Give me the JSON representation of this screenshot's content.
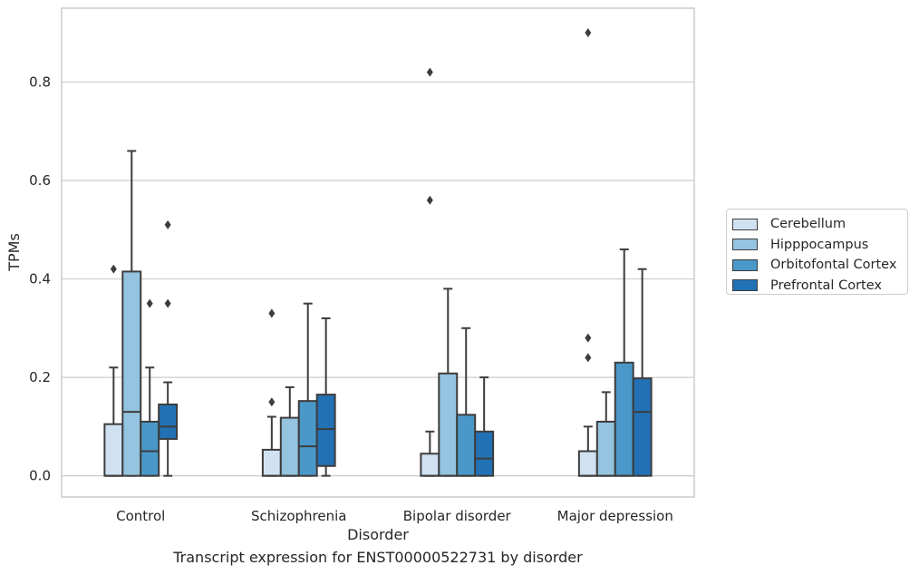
{
  "chart_data": {
    "type": "box",
    "xlabel": "Disorder",
    "ylabel": "TPMs",
    "ylim": [
      -0.043,
      0.95
    ],
    "yticks": [
      "0.0",
      "0.2",
      "0.4",
      "0.6",
      "0.8"
    ],
    "grid": "horizontal",
    "legend_position": "right",
    "categories": [
      "Control",
      "Schizophrenia",
      "Bipolar disorder",
      "Major depression"
    ],
    "series": [
      {
        "name": "Cerebellum",
        "color": "#d0e1f2",
        "boxes": [
          {
            "whisker_low": 0.0,
            "q1": 0.0,
            "median": 0.0,
            "q3": 0.105,
            "whisker_high": 0.22,
            "outliers": [
              0.42
            ]
          },
          {
            "whisker_low": 0.0,
            "q1": 0.0,
            "median": 0.0,
            "q3": 0.053,
            "whisker_high": 0.12,
            "outliers": [
              0.15,
              0.33
            ]
          },
          {
            "whisker_low": 0.0,
            "q1": 0.0,
            "median": 0.0,
            "q3": 0.045,
            "whisker_high": 0.09,
            "outliers": [
              0.56,
              0.82
            ]
          },
          {
            "whisker_low": 0.0,
            "q1": 0.0,
            "median": 0.0,
            "q3": 0.05,
            "whisker_high": 0.1,
            "outliers": [
              0.24,
              0.28,
              0.9
            ]
          }
        ]
      },
      {
        "name": "Hipppocampus",
        "color": "#94c4df",
        "boxes": [
          {
            "whisker_low": 0.0,
            "q1": 0.0,
            "median": 0.13,
            "q3": 0.415,
            "whisker_high": 0.66,
            "outliers": []
          },
          {
            "whisker_low": 0.0,
            "q1": 0.0,
            "median": 0.0,
            "q3": 0.118,
            "whisker_high": 0.18,
            "outliers": []
          },
          {
            "whisker_low": 0.0,
            "q1": 0.0,
            "median": 0.0,
            "q3": 0.208,
            "whisker_high": 0.38,
            "outliers": []
          },
          {
            "whisker_low": 0.0,
            "q1": 0.0,
            "median": 0.0,
            "q3": 0.11,
            "whisker_high": 0.17,
            "outliers": []
          }
        ]
      },
      {
        "name": "Orbitofontal Cortex",
        "color": "#4a98c9",
        "boxes": [
          {
            "whisker_low": 0.0,
            "q1": 0.0,
            "median": 0.05,
            "q3": 0.11,
            "whisker_high": 0.22,
            "outliers": [
              0.35
            ]
          },
          {
            "whisker_low": 0.0,
            "q1": 0.0,
            "median": 0.06,
            "q3": 0.152,
            "whisker_high": 0.35,
            "outliers": []
          },
          {
            "whisker_low": 0.0,
            "q1": 0.0,
            "median": 0.0,
            "q3": 0.124,
            "whisker_high": 0.3,
            "outliers": []
          },
          {
            "whisker_low": 0.0,
            "q1": 0.0,
            "median": 0.0,
            "q3": 0.23,
            "whisker_high": 0.46,
            "outliers": []
          }
        ]
      },
      {
        "name": "Prefrontal Cortex",
        "color": "#2271b5",
        "boxes": [
          {
            "whisker_low": 0.0,
            "q1": 0.075,
            "median": 0.1,
            "q3": 0.145,
            "whisker_high": 0.19,
            "outliers": [
              0.35,
              0.51
            ]
          },
          {
            "whisker_low": 0.0,
            "q1": 0.02,
            "median": 0.095,
            "q3": 0.165,
            "whisker_high": 0.32,
            "outliers": []
          },
          {
            "whisker_low": 0.0,
            "q1": 0.0,
            "median": 0.035,
            "q3": 0.09,
            "whisker_high": 0.2,
            "outliers": []
          },
          {
            "whisker_low": 0.0,
            "q1": 0.0,
            "median": 0.13,
            "q3": 0.198,
            "whisker_high": 0.42,
            "outliers": []
          }
        ]
      }
    ],
    "caption": "Transcript expression for ENST00000522731 by disorder"
  }
}
